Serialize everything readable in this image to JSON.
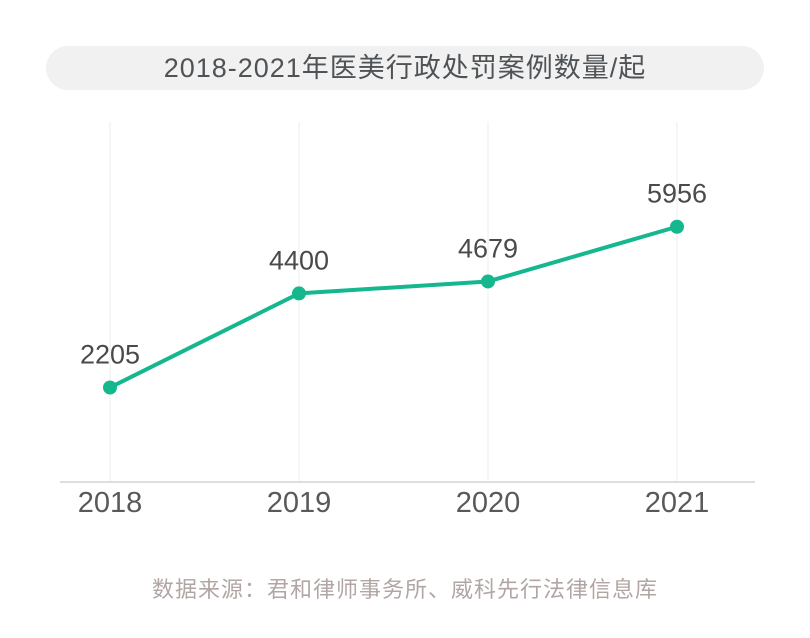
{
  "chart_data": {
    "type": "line",
    "title": "2018-2021年医美行政处罚案例数量/起",
    "categories": [
      "2018",
      "2019",
      "2020",
      "2021"
    ],
    "values": [
      2205,
      4400,
      4679,
      5956
    ],
    "ylim": [
      0,
      8400
    ],
    "grid": "vertical-only",
    "legend": "none",
    "line_color": "#15b78e",
    "point_color": "#15b78e"
  },
  "source_note": "数据来源：君和律师事务所、威科先行法律信息库",
  "colors": {
    "title_bg": "#f1f1f1",
    "title_text": "#4f5356",
    "value_label": "#4a4a4a",
    "axis_label": "#595959",
    "gridline": "#ececec",
    "axis_line": "#d4d4d4",
    "source_text": "#b2a6a4"
  }
}
